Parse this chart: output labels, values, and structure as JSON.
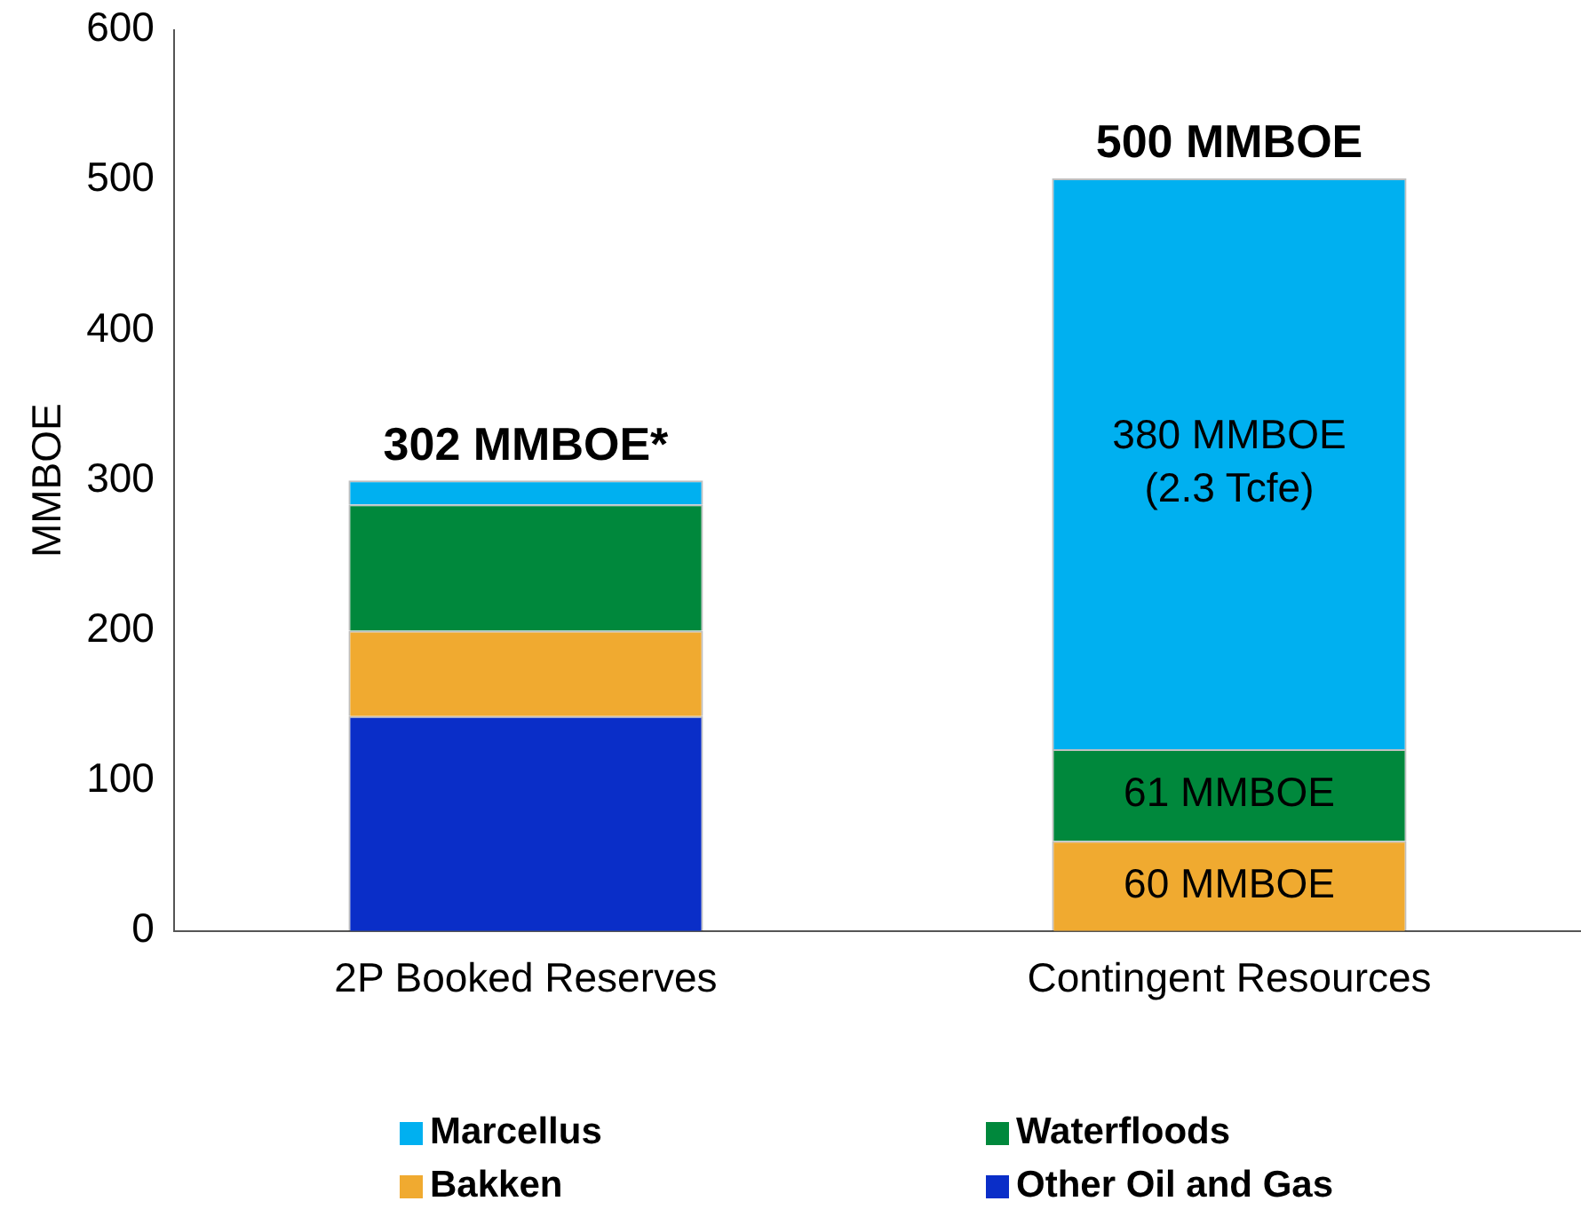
{
  "chart_data": {
    "type": "bar",
    "stacked": true,
    "ylabel": "MMBOE",
    "categories": [
      "2P Booked Reserves",
      "Contingent Resources"
    ],
    "series": [
      {
        "name": "Other Oil and Gas",
        "color": "#0a2ec8",
        "values": [
          143,
          null
        ]
      },
      {
        "name": "Bakken",
        "color": "#f0aa30",
        "values": [
          57,
          60
        ],
        "value_labels": [
          null,
          "60 MMBOE"
        ]
      },
      {
        "name": "Waterfloods",
        "color": "#00883c",
        "values": [
          84,
          61
        ],
        "value_labels": [
          null,
          "61 MMBOE"
        ]
      },
      {
        "name": "Marcellus",
        "color": "#00b0f0",
        "values": [
          16,
          380
        ],
        "value_labels": [
          null,
          "380 MMBOE\n(2.3 Tcfe)"
        ]
      }
    ],
    "totals": [
      "302 MMBOE*",
      "500 MMBOE"
    ],
    "ylim": [
      0,
      600
    ],
    "yticks": [
      0,
      100,
      200,
      300,
      400,
      500,
      600
    ],
    "grid": false,
    "legend": "bottom"
  }
}
